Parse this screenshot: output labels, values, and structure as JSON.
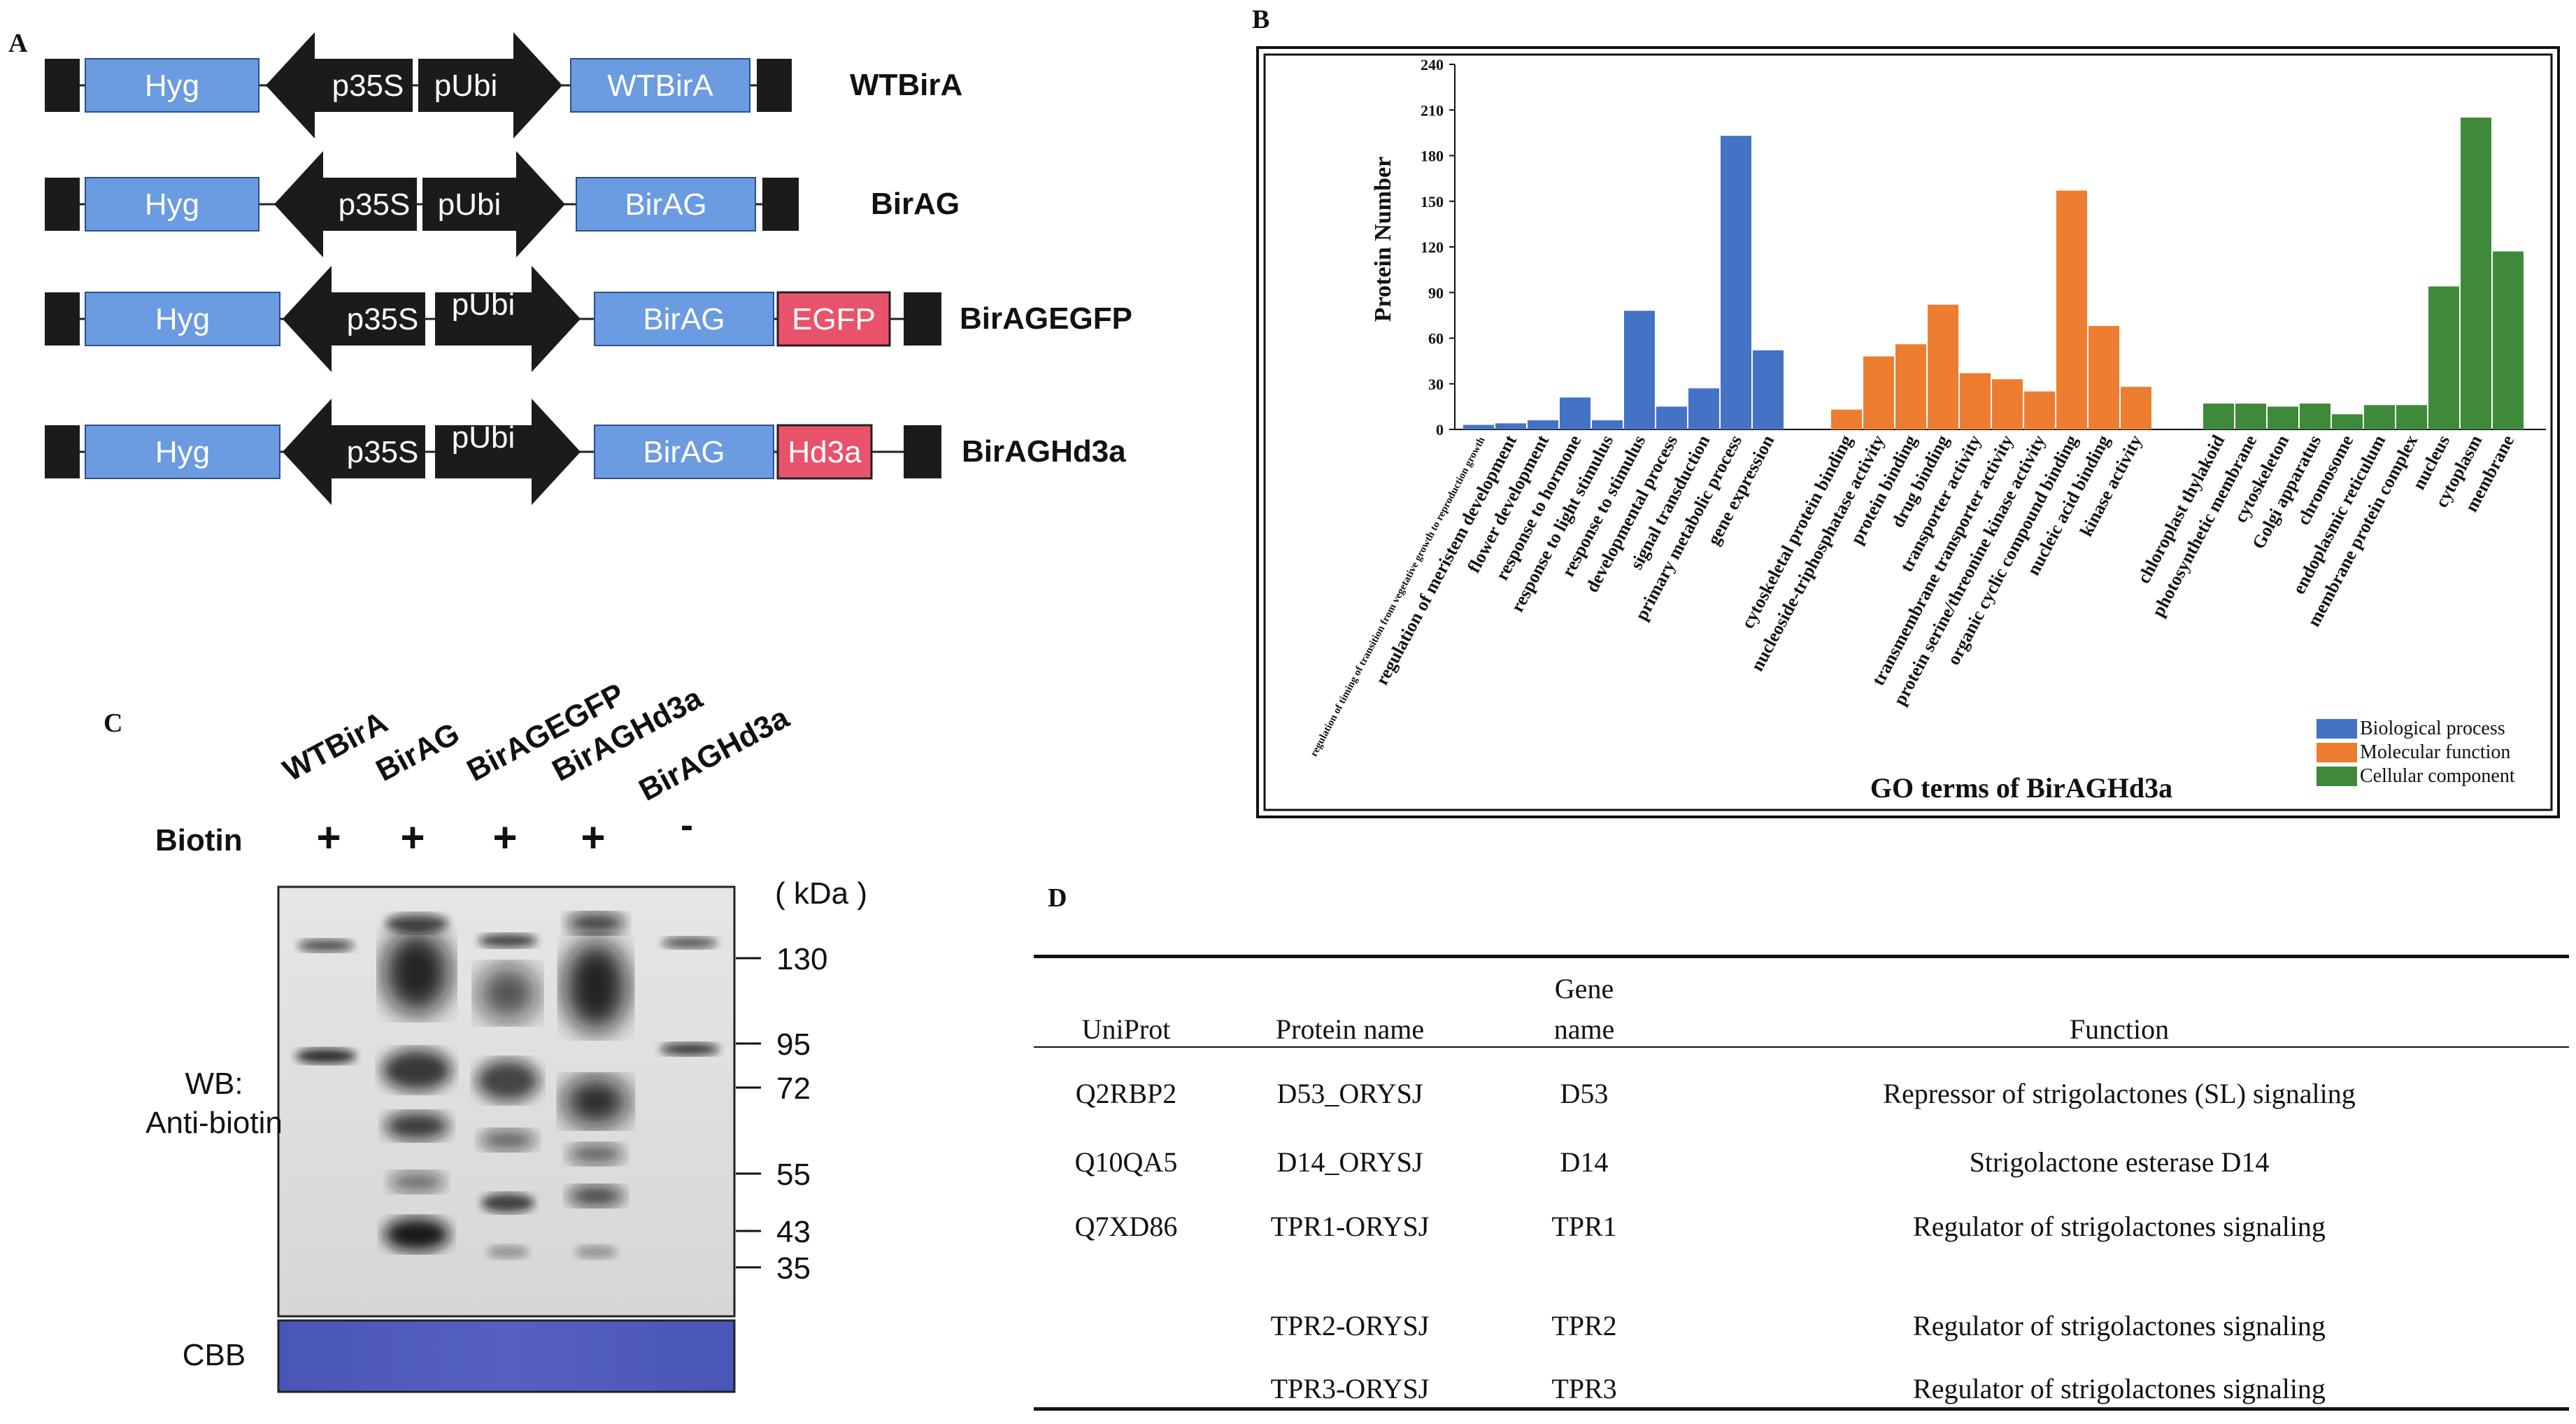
{
  "panel_labels": {
    "a": "A",
    "b": "B",
    "c": "C",
    "d": "D"
  },
  "constructs": [
    {
      "name": "WTBirA",
      "left": "Hyg",
      "promoter1": "p35S",
      "promoter2": "pUbi",
      "gene": "WTBirA",
      "tag": ""
    },
    {
      "name": "BirAG",
      "left": "Hyg",
      "promoter1": "p35S",
      "promoter2": "pUbi",
      "gene": "BirAG",
      "tag": ""
    },
    {
      "name": "BirAGEGFP",
      "left": "Hyg",
      "promoter1": "p35S",
      "promoter2": "pUbi",
      "gene": "BirAG",
      "tag": "EGFP"
    },
    {
      "name": "BirAGHd3a",
      "left": "Hyg",
      "promoter1": "p35S",
      "promoter2": "pUbi",
      "gene": "BirAG",
      "tag": "Hd3a"
    }
  ],
  "colors": {
    "blue_box": "#6b9be0",
    "pink_box": "#e8536b",
    "black": "#1b1b1b",
    "bp": "#4472c4",
    "mf": "#ed7d31",
    "cc": "#3f8a3a",
    "cbb": "#4a55b8"
  },
  "chart_data": {
    "type": "bar",
    "title": "",
    "xlabel": "GO terms of BirAGHd3a",
    "ylabel": "Protein Number",
    "ylim": [
      0,
      240
    ],
    "yticks": [
      0,
      30,
      60,
      90,
      120,
      150,
      180,
      210,
      240
    ],
    "legend_position": "bottom-right",
    "series": [
      {
        "name": "Biological process",
        "color": "#4472c4",
        "categories": [
          "regulation of timing of transition from vegetative growth to reproduction growth",
          "regulation of meristem development",
          "flower development",
          "response to hormone",
          "response to light stimulus",
          "response to stimulus",
          "developmental process",
          "signal transduction",
          "primary metabolic process",
          "gene expression"
        ],
        "values": [
          3,
          4,
          6,
          21,
          6,
          78,
          15,
          27,
          193,
          52
        ]
      },
      {
        "name": "Molecular function",
        "color": "#ed7d31",
        "categories": [
          "cytoskeletal protein binding",
          "nucleoside-triphosphatase activity",
          "protein binding",
          "drug binding",
          "transporter activity",
          "transmembrane transporter activity",
          "protein serine/threonine kinase activity",
          "organic cyclic compound binding",
          "nucleic acid binding",
          "kinase activity"
        ],
        "values": [
          13,
          48,
          56,
          82,
          37,
          33,
          25,
          157,
          68,
          28
        ]
      },
      {
        "name": "Cellular component",
        "color": "#3f8a3a",
        "categories": [
          "chloroplast thylakoid",
          "photosynthetic membrane",
          "cytoskeleton",
          "Golgi apparatus",
          "chromosome",
          "endoplasmic reticulum",
          "membrane protein complex",
          "nucleus",
          "cytoplasm",
          "membrane"
        ],
        "values": [
          17,
          17,
          15,
          17,
          10,
          16,
          16,
          94,
          205,
          117
        ]
      }
    ]
  },
  "western": {
    "lanes": [
      "WTBirA",
      "BirAG",
      "BirAGEGFP",
      "BirAGHd3a",
      "BirAGHd3a"
    ],
    "biotin_label": "Biotin",
    "biotin": [
      "+",
      "+",
      "+",
      "+",
      "-"
    ],
    "kda_label": "( kDa )",
    "markers": [
      "130",
      "95",
      "72",
      "55",
      "43",
      "35"
    ],
    "wb_label_1": "WB:",
    "wb_label_2": "Anti-biotin",
    "cbb_label": "CBB"
  },
  "table": {
    "headers": {
      "uniprot": "UniProt",
      "protein": "Protein name",
      "gene_1": "Gene",
      "gene_2": "name",
      "function": "Function"
    },
    "rows": [
      {
        "uniprot": "Q2RBP2",
        "protein": "D53_ORYSJ",
        "gene": "D53",
        "function": "Repressor of strigolactones (SL) signaling"
      },
      {
        "uniprot": "Q10QA5",
        "protein": "D14_ORYSJ",
        "gene": "D14",
        "function": "Strigolactone esterase D14"
      },
      {
        "uniprot": "Q7XD86",
        "protein": "TPR1-ORYSJ",
        "gene": "TPR1",
        "function": "Regulator of strigolactones signaling"
      },
      {
        "uniprot": "",
        "protein": "TPR2-ORYSJ",
        "gene": "TPR2",
        "function": "Regulator of strigolactones signaling"
      },
      {
        "uniprot": "",
        "protein": "TPR3-ORYSJ",
        "gene": "TPR3",
        "function": "Regulator of strigolactones signaling"
      }
    ]
  }
}
